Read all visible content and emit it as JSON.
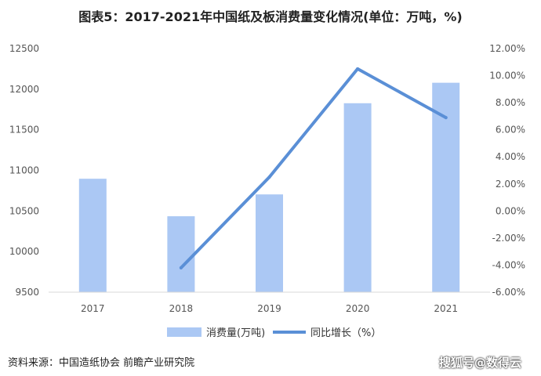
{
  "chart_data": {
    "type": "bar+line",
    "title": "图表5：2017-2021年中国纸及板消费量变化情况(单位：万吨，%)",
    "categories": [
      "2017",
      "2018",
      "2019",
      "2020",
      "2021"
    ],
    "series": [
      {
        "name": "消费量(万吨)",
        "type": "bar",
        "axis": "left",
        "color": "#abc8f4",
        "values": [
          10897,
          10435,
          10704,
          11827,
          12079
        ]
      },
      {
        "name": "同比增长（%）",
        "type": "line",
        "axis": "right",
        "color": "#5a8fd6",
        "values": [
          null,
          -4.2,
          2.5,
          10.5,
          6.9
        ]
      }
    ],
    "left_axis": {
      "ylim": [
        9500,
        12500
      ],
      "ticks": [
        "9500",
        "10000",
        "10500",
        "11000",
        "11500",
        "12000",
        "12500"
      ]
    },
    "right_axis": {
      "ylim": [
        -6,
        12
      ],
      "ticks": [
        "-6.00%",
        "-4.00%",
        "-2.00%",
        "0.00%",
        "2.00%",
        "4.00%",
        "6.00%",
        "8.00%",
        "10.00%",
        "12.00%"
      ]
    },
    "grid": false,
    "legend": "bottom-center"
  },
  "source_text": "资料来源：中国造纸协会 前瞻产业研究院",
  "watermark_text": "搜狐号@数得云"
}
